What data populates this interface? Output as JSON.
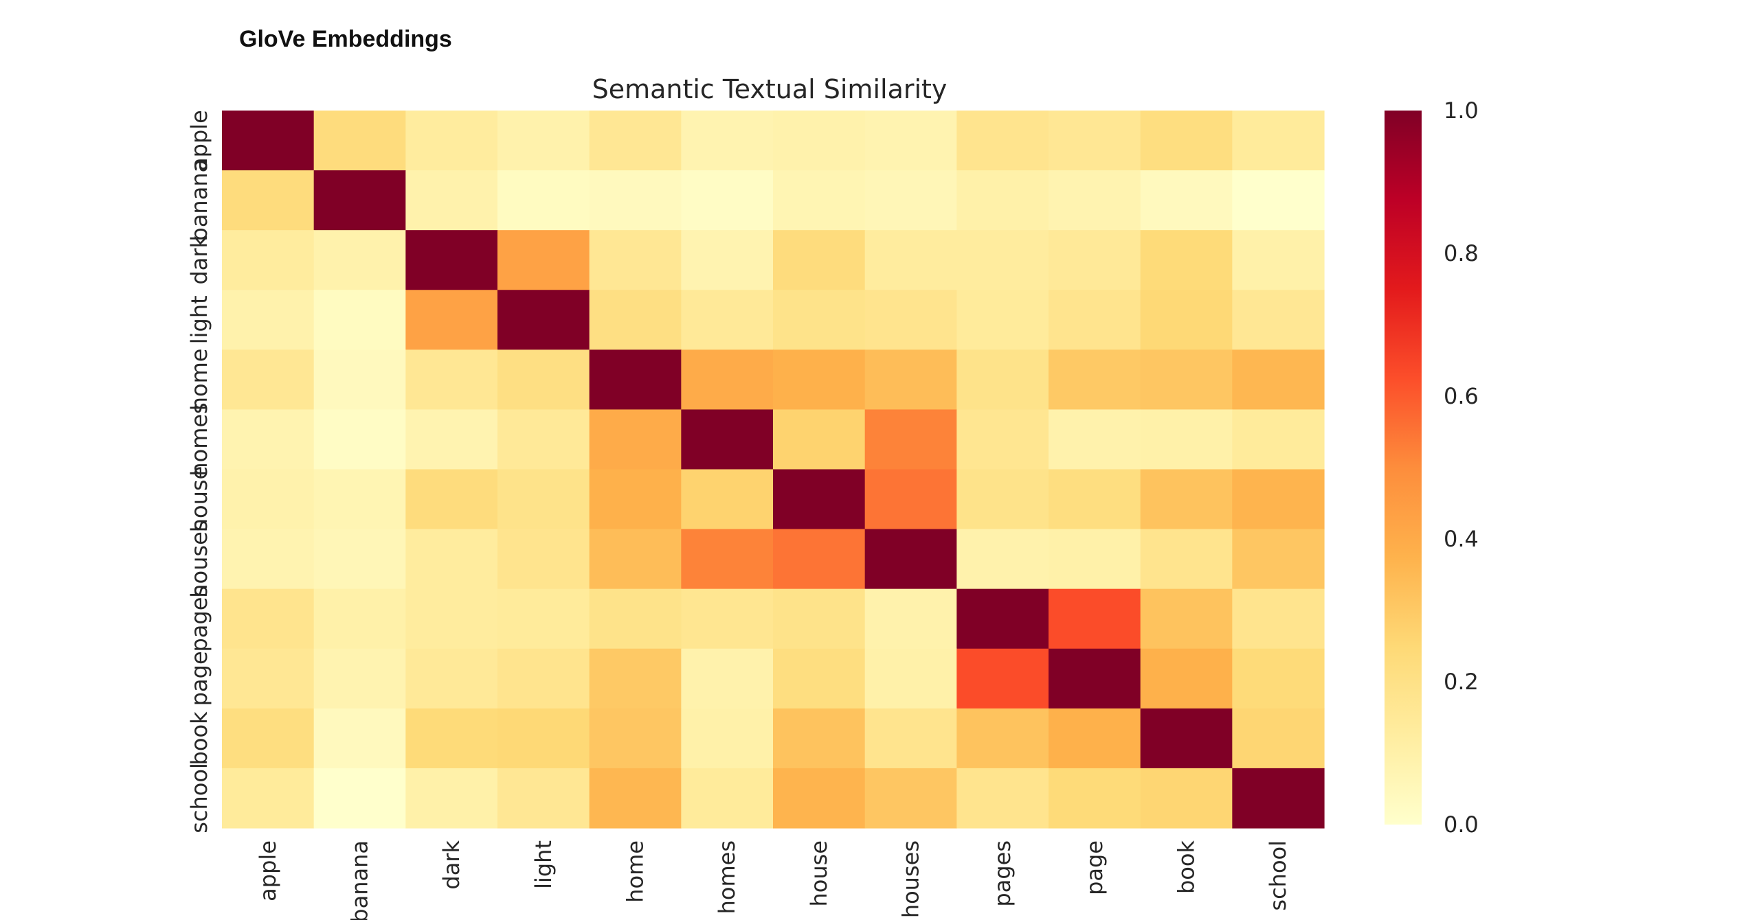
{
  "page": {
    "heading": "GloVe Embeddings"
  },
  "chart_data": {
    "type": "heatmap",
    "title": "Semantic Textual Similarity",
    "xlabel": "",
    "ylabel": "",
    "x_categories": [
      "apple",
      "banana",
      "dark",
      "light",
      "home",
      "homes",
      "house",
      "houses",
      "pages",
      "page",
      "book",
      "school"
    ],
    "y_categories": [
      "apple",
      "banana",
      "dark",
      "light",
      "home",
      "homes",
      "house",
      "houses",
      "pages",
      "page",
      "book",
      "school"
    ],
    "values": [
      [
        1.0,
        0.23,
        0.13,
        0.09,
        0.16,
        0.08,
        0.09,
        0.08,
        0.18,
        0.16,
        0.22,
        0.14
      ],
      [
        0.23,
        1.0,
        0.09,
        0.03,
        0.04,
        0.02,
        0.07,
        0.06,
        0.1,
        0.08,
        0.04,
        0.0
      ],
      [
        0.13,
        0.09,
        1.0,
        0.43,
        0.16,
        0.08,
        0.23,
        0.13,
        0.13,
        0.15,
        0.24,
        0.1
      ],
      [
        0.09,
        0.03,
        0.43,
        1.0,
        0.21,
        0.15,
        0.19,
        0.18,
        0.14,
        0.18,
        0.25,
        0.16
      ],
      [
        0.16,
        0.04,
        0.16,
        0.21,
        1.0,
        0.4,
        0.38,
        0.34,
        0.19,
        0.3,
        0.31,
        0.36
      ],
      [
        0.08,
        0.02,
        0.08,
        0.15,
        0.4,
        1.0,
        0.27,
        0.52,
        0.17,
        0.09,
        0.1,
        0.14
      ],
      [
        0.09,
        0.07,
        0.23,
        0.19,
        0.38,
        0.27,
        1.0,
        0.55,
        0.19,
        0.22,
        0.32,
        0.37
      ],
      [
        0.08,
        0.06,
        0.13,
        0.18,
        0.34,
        0.52,
        0.55,
        1.0,
        0.09,
        0.1,
        0.18,
        0.31
      ],
      [
        0.18,
        0.1,
        0.13,
        0.14,
        0.19,
        0.17,
        0.19,
        0.09,
        1.0,
        0.63,
        0.32,
        0.18
      ],
      [
        0.16,
        0.08,
        0.15,
        0.18,
        0.3,
        0.09,
        0.22,
        0.1,
        0.63,
        1.0,
        0.38,
        0.24
      ],
      [
        0.22,
        0.04,
        0.24,
        0.25,
        0.31,
        0.1,
        0.32,
        0.18,
        0.32,
        0.38,
        1.0,
        0.26
      ],
      [
        0.14,
        0.0,
        0.1,
        0.16,
        0.36,
        0.14,
        0.37,
        0.31,
        0.18,
        0.24,
        0.26,
        1.0
      ]
    ],
    "vmin": 0.0,
    "vmax": 1.0,
    "colormap": "YlOrRd",
    "colorbar": {
      "ticks": [
        "0.0",
        "0.2",
        "0.4",
        "0.6",
        "0.8",
        "1.0"
      ]
    },
    "grid": false,
    "legend": "colorbar-right"
  }
}
